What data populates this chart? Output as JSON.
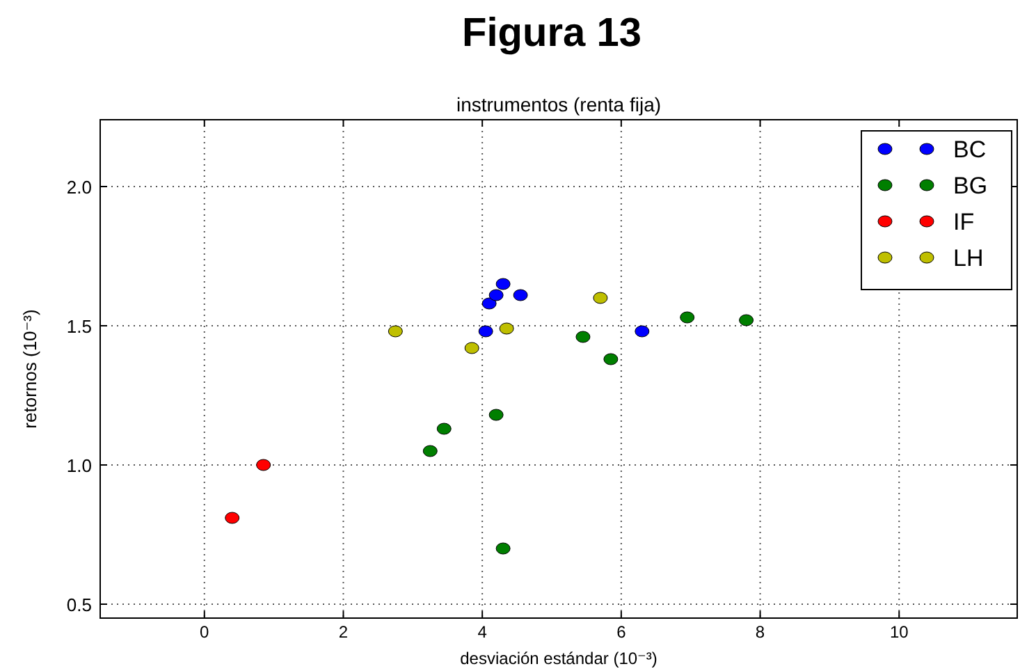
{
  "chart_data": {
    "type": "scatter",
    "title": "Figura 13",
    "subtitle": "instrumentos (renta fija)",
    "xlabel": "desviación estándar (10⁻³)",
    "ylabel": "retornos (10⁻³)",
    "xlim": [
      -1.5,
      11.7
    ],
    "ylim": [
      0.45,
      2.24
    ],
    "xticks": [
      0,
      2,
      4,
      6,
      8,
      10
    ],
    "yticks": [
      0.5,
      {
        "value": 1,
        "label": "1.0"
      },
      1.5,
      {
        "value": 2,
        "label": "2.0"
      }
    ],
    "grid": true,
    "legend": "top right",
    "marker": "circle",
    "series": [
      {
        "name": "BC",
        "color": "#0000ff",
        "x": [
          4.05,
          4.1,
          4.2,
          4.3,
          4.55,
          6.3
        ],
        "values": [
          1.48,
          1.58,
          1.61,
          1.65,
          1.61,
          1.48
        ]
      },
      {
        "name": "BG",
        "color": "#007f00",
        "x": [
          3.25,
          3.45,
          4.2,
          4.3,
          5.45,
          5.85,
          6.95,
          7.8
        ],
        "values": [
          1.05,
          1.13,
          1.18,
          0.7,
          1.46,
          1.38,
          1.53,
          1.52
        ]
      },
      {
        "name": "IF",
        "color": "#ff0000",
        "x": [
          0.4,
          0.85
        ],
        "values": [
          0.81,
          1.0
        ]
      },
      {
        "name": "LH",
        "color": "#bfbf00",
        "x": [
          2.75,
          3.85,
          4.35,
          5.7
        ],
        "values": [
          1.48,
          1.42,
          1.49,
          1.6
        ]
      }
    ]
  }
}
